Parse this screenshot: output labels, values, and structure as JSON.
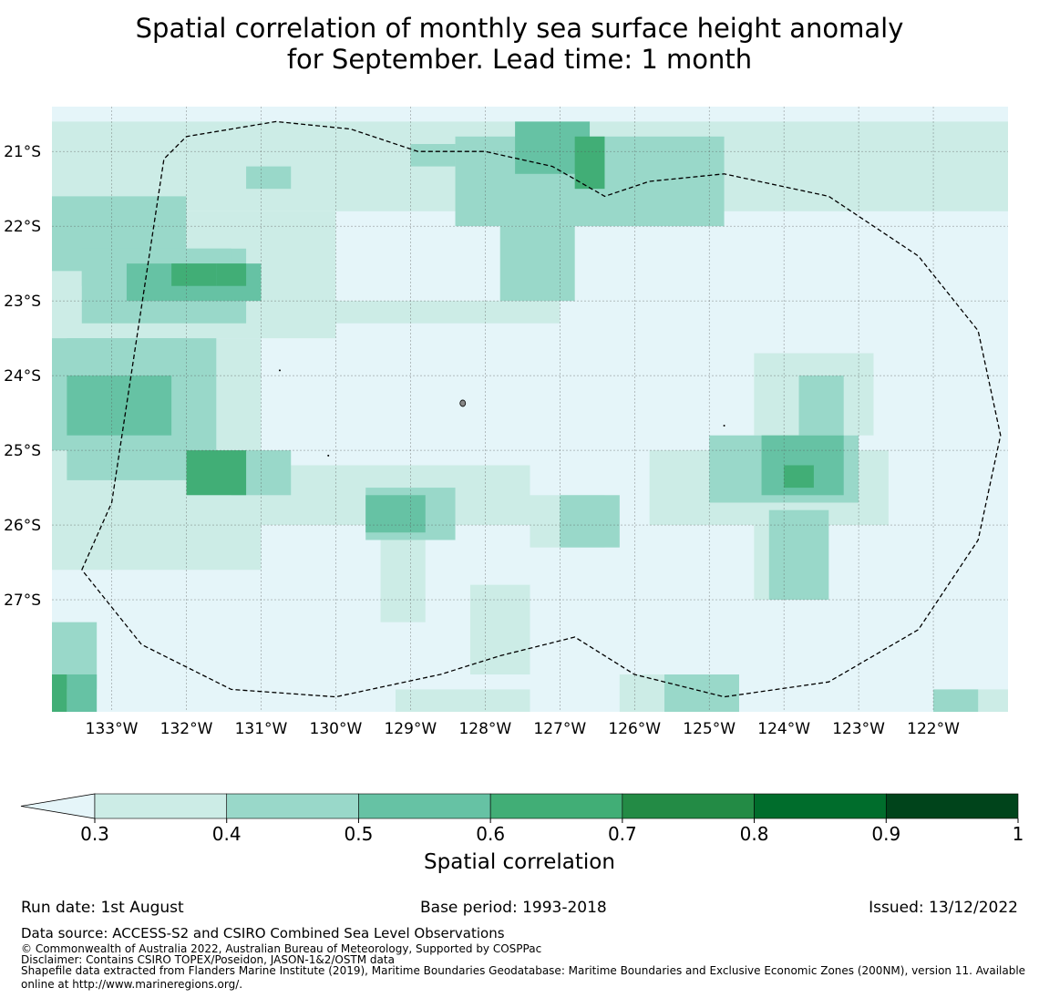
{
  "title": {
    "line1": "Spatial correlation of monthly sea surface height anomaly",
    "line2": "for September. Lead time: 1 month"
  },
  "chart_data": {
    "type": "heatmap",
    "title": "Spatial correlation of monthly sea surface height anomaly for September. Lead time: 1 month",
    "xlabel": "",
    "ylabel": "",
    "x_ticks": [
      "133°W",
      "132°W",
      "131°W",
      "130°W",
      "129°W",
      "128°W",
      "127°W",
      "126°W",
      "125°W",
      "124°W",
      "123°W",
      "122°W"
    ],
    "y_ticks": [
      "21°S",
      "22°S",
      "23°S",
      "24°S",
      "25°S",
      "26°S",
      "27°S"
    ],
    "lon_range": [
      -133.8,
      -121.0
    ],
    "lat_range": [
      -28.5,
      -20.4
    ],
    "grid": true,
    "colorbar": {
      "label": "Spatial correlation",
      "ticks": [
        "0.3",
        "0.4",
        "0.5",
        "0.6",
        "0.7",
        "0.8",
        "0.9",
        "1"
      ],
      "bounds": [
        0.3,
        0.4,
        0.5,
        0.6,
        0.7,
        0.8,
        0.9,
        1.0
      ],
      "colors": [
        "#ccece6",
        "#99d8c9",
        "#66c2a4",
        "#41ae76",
        "#238b45",
        "#006d2c",
        "#00441b"
      ],
      "under_color": "#e5f5f9",
      "extend": "min"
    },
    "regions": [
      {
        "lon": [
          -133.4,
          -131.4
        ],
        "lat": [
          -22.8,
          -22.3
        ],
        "value": 0.45
      },
      {
        "lon": [
          -132.8,
          -131.0
        ],
        "lat": [
          -23.0,
          -22.5
        ],
        "value": 0.55
      },
      {
        "lon": [
          -132.2,
          -131.6
        ],
        "lat": [
          -22.8,
          -22.5
        ],
        "value": 0.65
      },
      {
        "lon": [
          -133.8,
          -132.0
        ],
        "lat": [
          -25.0,
          -23.5
        ],
        "value": 0.45
      },
      {
        "lon": [
          -133.6,
          -132.2
        ],
        "lat": [
          -24.8,
          -24.0
        ],
        "value": 0.55
      },
      {
        "lon": [
          -132.0,
          -131.2
        ],
        "lat": [
          -25.6,
          -25.0
        ],
        "value": 0.65
      },
      {
        "lon": [
          -127.6,
          -126.6
        ],
        "lat": [
          -21.3,
          -20.6
        ],
        "value": 0.55
      },
      {
        "lon": [
          -126.8,
          -126.4
        ],
        "lat": [
          -21.5,
          -20.8
        ],
        "value": 0.65
      },
      {
        "lon": [
          -124.3,
          -123.2
        ],
        "lat": [
          -25.6,
          -24.8
        ],
        "value": 0.55
      },
      {
        "lon": [
          -129.6,
          -128.8
        ],
        "lat": [
          -26.1,
          -25.6
        ],
        "value": 0.55
      }
    ]
  },
  "colorbar": {
    "label": "Spatial correlation",
    "t0": "0.3",
    "t1": "0.4",
    "t2": "0.5",
    "t3": "0.6",
    "t4": "0.7",
    "t5": "0.8",
    "t6": "0.9",
    "t7": "1"
  },
  "footer": {
    "run_date": "Run date: 1st August",
    "base_period": "Base period: 1993-2018",
    "issued": "Issued: 13/12/2022",
    "data_source": "Data source: ACCESS-S2 and CSIRO Combined Sea Level Observations",
    "copyright": "© Commonwealth of Australia 2022, Australian Bureau of Meteorology, Supported by COSPPac",
    "disclaimer": "Disclaimer: Contains CSIRO TOPEX/Poseidon, JASON-1&2/OSTM data",
    "shapefile_line1": "Shapefile data extracted from Flanders Marine Institute (2019), Maritime Boundaries Geodatabase: Maritime Boundaries and Exclusive Economic Zones (200NM), version 11. Available",
    "shapefile_line2": "online at http://www.marineregions.org/."
  }
}
